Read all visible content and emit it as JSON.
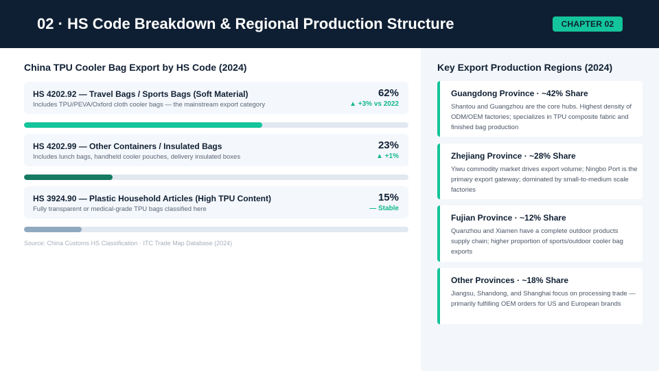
{
  "header": {
    "title": "02 · HS Code Breakdown & Regional Production Structure",
    "chapter_badge": "CHAPTER 02"
  },
  "left": {
    "title": "China TPU Cooler Bag Export by HS Code (2024)",
    "items": [
      {
        "title": "HS 4202.92 — Travel Bags / Sports Bags (Soft Material)",
        "description": "Includes TPU/PEVA/Oxford cloth cooler bags — the mainstream export category",
        "percent_label": "62%",
        "change": "▲ +3% vs 2022",
        "share": 62,
        "bar_color": "#14c49a"
      },
      {
        "title": "HS 4202.99 — Other Containers / Insulated Bags",
        "description": "Includes lunch bags, handheld cooler pouches, delivery insulated boxes",
        "percent_label": "23%",
        "change": "▲ +1%",
        "share": 23,
        "bar_color": "#177a63"
      },
      {
        "title": "HS 3924.90 — Plastic Household Articles (High TPU Content)",
        "description": "Fully transparent or medical-grade TPU bags classified here",
        "percent_label": "15%",
        "change": "— Stable",
        "share": 15,
        "bar_color": "#8fa9bf"
      }
    ],
    "source": "Source: China Customs HS Classification · ITC Trade Map Database (2024)"
  },
  "right": {
    "title": "Key Export Production Regions (2024)",
    "regions": [
      {
        "title": "Guangdong Province · ~42% Share",
        "description": "Shantou and Guangzhou are the core hubs. Highest density of ODM/OEM factories; specializes in TPU composite fabric and finished bag production"
      },
      {
        "title": "Zhejiang Province · ~28% Share",
        "description": "Yiwu commodity market drives export volume; Ningbo Port is the primary export gateway; dominated by small-to-medium scale factories"
      },
      {
        "title": "Fujian Province · ~12% Share",
        "description": "Quanzhou and Xiamen have a complete outdoor products supply chain; higher proportion of sports/outdoor cooler bag exports"
      },
      {
        "title": "Other Provinces · ~18% Share",
        "description": "Jiangsu, Shandong, and Shanghai focus on processing trade — primarily fulfilling OEM orders for US and European brands"
      }
    ]
  },
  "colors": {
    "header_bg": "#0f1f33",
    "accent": "#14c49a"
  }
}
